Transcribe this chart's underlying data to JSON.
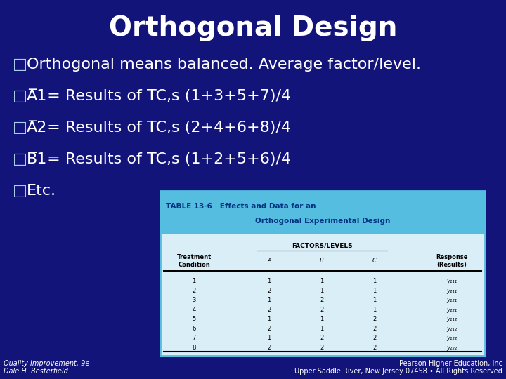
{
  "title": "Orthogonal Design",
  "bg_color": "#12147a",
  "title_color": "#ffffff",
  "text_color": "#ffffff",
  "bullet_color": "#aaccee",
  "bullet_symbol": "□",
  "line0": "Orthogonal means balanced. Average factor/level.",
  "overline_lines": [
    [
      "A",
      "1",
      " = Results of TC,s (1+3+5+7)/4"
    ],
    [
      "A",
      "2",
      " = Results of TC,s (2+4+6+8)/4"
    ],
    [
      "B",
      "1",
      " = Results of TC,s (1+2+5+6)/4"
    ]
  ],
  "etc_line": "Etc.",
  "table_header_color": "#55bde0",
  "table_body_color": "#d9eef7",
  "table_title_line1": "TABLE 13-6   Effects and Data for an",
  "table_title_line2": "Orthogonal Experimental Design",
  "table_sub_header": "FACTORS/LEVELS",
  "col_headers": [
    "Treatment\nCondition",
    "A",
    "B",
    "C",
    "Response\n(Results)"
  ],
  "table_rows": [
    [
      "1",
      "1",
      "1",
      "1",
      "y₁₁₁"
    ],
    [
      "2",
      "2",
      "1",
      "1",
      "y₂₁₁"
    ],
    [
      "3",
      "1",
      "2",
      "1",
      "y₁₂₁"
    ],
    [
      "4",
      "2",
      "2",
      "1",
      "y₂₂₁"
    ],
    [
      "5",
      "1",
      "1",
      "2",
      "y₁₁₂"
    ],
    [
      "6",
      "2",
      "1",
      "2",
      "y₂₁₂"
    ],
    [
      "7",
      "1",
      "2",
      "2",
      "y₁₂₂"
    ],
    [
      "8",
      "2",
      "2",
      "2",
      "y₂₂₂"
    ]
  ],
  "footer_left1": "Quality Improvement, 9e",
  "footer_left2": "Dale H. Besterfield",
  "footer_right1": "Pearson Higher Education, Inc",
  "footer_right2": "Upper Saddle River, New Jersey 07458 • All Rights Reserved"
}
